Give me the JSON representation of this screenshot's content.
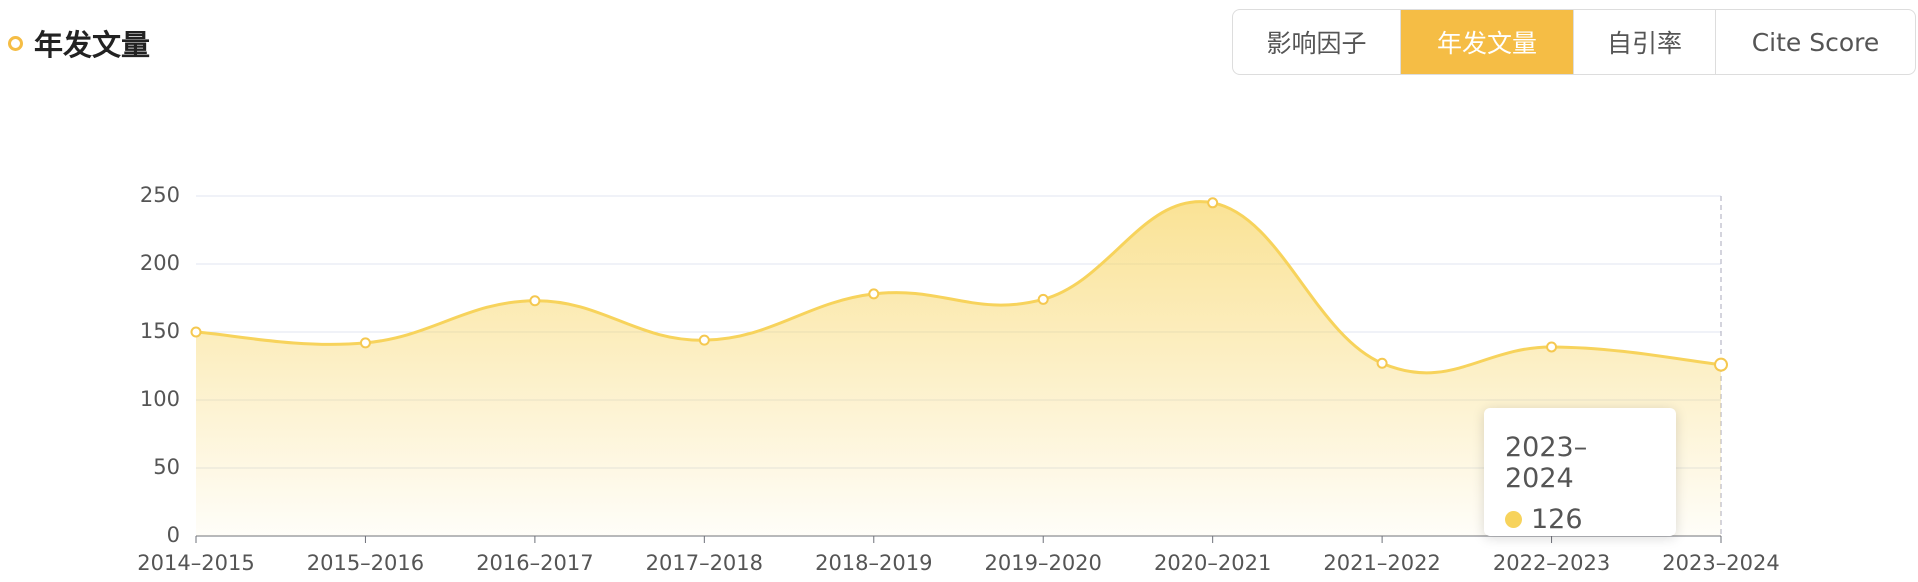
{
  "header": {
    "title": "年发文量"
  },
  "tabs": [
    {
      "label": "影响因子",
      "active": false
    },
    {
      "label": "年发文量",
      "active": true
    },
    {
      "label": "自引率",
      "active": false
    },
    {
      "label": "Cite Score",
      "active": false
    }
  ],
  "chart_data": {
    "type": "area",
    "categories": [
      "2014–2015",
      "2015–2016",
      "2016–2017",
      "2017–2018",
      "2018–2019",
      "2019–2020",
      "2020–2021",
      "2021–2022",
      "2022–2023",
      "2023–2024"
    ],
    "values": [
      150,
      142,
      173,
      144,
      178,
      174,
      245,
      127,
      139,
      126
    ],
    "color": "#f7d35c",
    "ylim": [
      0,
      250
    ],
    "yticks": [
      0,
      50,
      100,
      150,
      200,
      250
    ],
    "grid": true,
    "tooltip_index": 9
  }
}
